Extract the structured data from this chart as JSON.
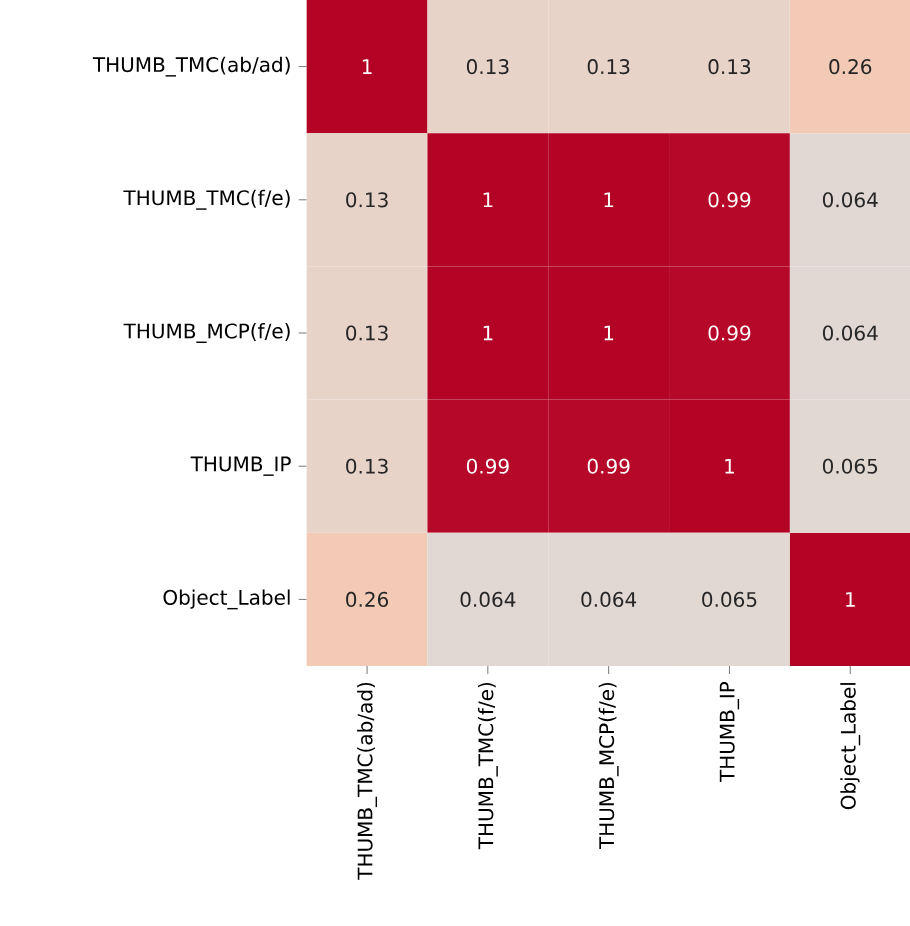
{
  "chart_data": {
    "type": "heatmap",
    "categories": [
      "THUMB_TMC(ab/ad)",
      "THUMB_TMC(f/e)",
      "THUMB_MCP(f/e)",
      "THUMB_IP",
      "Object_Label"
    ],
    "y_categories": [
      "THUMB_TMC(ab/ad)",
      "THUMB_TMC(f/e)",
      "THUMB_MCP(f/e)",
      "THUMB_IP",
      "Object_Label"
    ],
    "cells": [
      [
        1,
        0.13,
        0.13,
        0.13,
        0.26
      ],
      [
        0.13,
        1,
        1,
        0.99,
        0.064
      ],
      [
        0.13,
        1,
        1,
        0.99,
        0.064
      ],
      [
        0.13,
        0.99,
        0.99,
        1,
        0.065
      ],
      [
        0.26,
        0.064,
        0.064,
        0.065,
        1
      ]
    ],
    "data_labels": true
  }
}
